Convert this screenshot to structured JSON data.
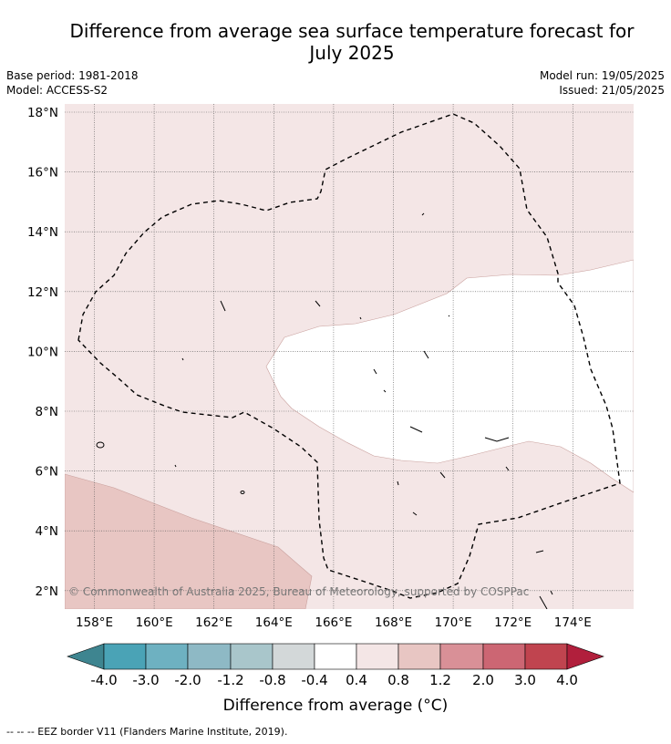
{
  "title_line1": "Difference from average sea surface temperature forecast for",
  "title_line2": "July 2025",
  "meta": {
    "base_period": "Base period: 1981-2018",
    "model": "Model: ACCESS-S2",
    "model_run": "Model run: 19/05/2025",
    "issued": "Issued: 21/05/2025"
  },
  "map": {
    "latitude_labels": [
      "18°N",
      "16°N",
      "14°N",
      "12°N",
      "10°N",
      "8°N",
      "6°N",
      "4°N",
      "2°N"
    ],
    "longitude_labels": [
      "158°E",
      "160°E",
      "162°E",
      "164°E",
      "166°E",
      "168°E",
      "170°E",
      "172°E",
      "174°E"
    ],
    "copyright": "© Commonwealth of Australia 2025, Bureau of Meteorology, supported by COSPPac",
    "background_color": "#f4e6e6",
    "warm_color": "#e8c6c3",
    "neutral_color": "#ffffff"
  },
  "colorbar": {
    "ticks": [
      "-4.0",
      "-3.0",
      "-2.0",
      "-1.2",
      "-0.8",
      "-0.4",
      "0.4",
      "0.8",
      "1.2",
      "2.0",
      "3.0",
      "4.0"
    ],
    "colors": [
      "#4aa3b6",
      "#6eb1c1",
      "#8eb9c5",
      "#a9c6cb",
      "#d3d8d9",
      "#ffffff",
      "#f4e6e6",
      "#e8c6c3",
      "#d99097",
      "#cc6673",
      "#c0444f"
    ],
    "under_color": "#3e8590",
    "over_color": "#b11f3c",
    "label": "Difference from average (°C)"
  },
  "footer": "--  --  -- EEZ border V11 (Flanders Marine Institute, 2019)."
}
